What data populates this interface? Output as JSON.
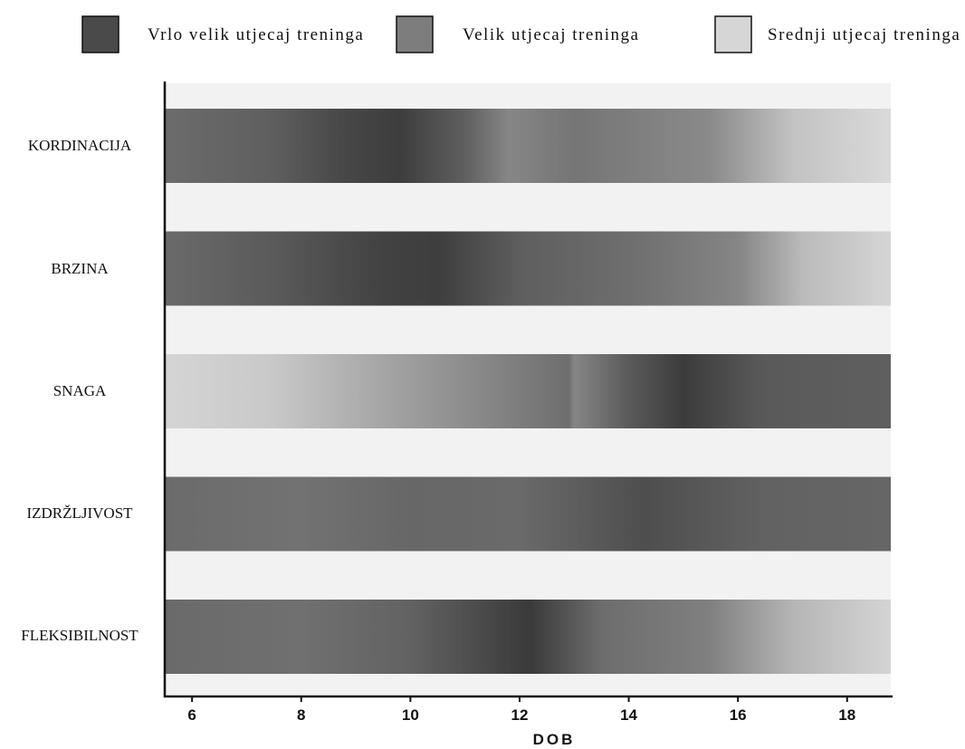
{
  "chart_data": {
    "type": "heatmap",
    "title": "",
    "xlabel": "DOB",
    "ylabel": "",
    "xlim": [
      5.5,
      18.8
    ],
    "x_ticks": [
      "6",
      "8",
      "10",
      "12",
      "14",
      "16",
      "18"
    ],
    "legend": {
      "placement": "top",
      "entries": [
        {
          "label": "Vrlo velik utjecaj treninga",
          "color": "#4a4a4a"
        },
        {
          "label": "Velik utjecaj treninga",
          "color": "#7d7d7d"
        },
        {
          "label": "Srednji utjecaj treninga",
          "color": "#d6d6d6"
        }
      ]
    },
    "band_background": "#f2f2f2",
    "rows": [
      {
        "label": "KORDINACIJA",
        "stops": [
          {
            "age": 5.5,
            "color": "#6c6c6c"
          },
          {
            "age": 7.5,
            "color": "#5e5e5e"
          },
          {
            "age": 8.8,
            "color": "#474747"
          },
          {
            "age": 9.8,
            "color": "#3d3d3d"
          },
          {
            "age": 11.0,
            "color": "#5f5f5f"
          },
          {
            "age": 11.8,
            "color": "#868686"
          },
          {
            "age": 13.0,
            "color": "#757575"
          },
          {
            "age": 15.5,
            "color": "#8a8a8a"
          },
          {
            "age": 17.0,
            "color": "#c2c2c2"
          },
          {
            "age": 18.8,
            "color": "#dadada"
          }
        ]
      },
      {
        "label": "BRZINA",
        "stops": [
          {
            "age": 5.5,
            "color": "#6a6a6a"
          },
          {
            "age": 7.5,
            "color": "#5a5a5a"
          },
          {
            "age": 9.5,
            "color": "#424242"
          },
          {
            "age": 10.5,
            "color": "#3e3e3e"
          },
          {
            "age": 12.0,
            "color": "#5e5e5e"
          },
          {
            "age": 14.0,
            "color": "#6e6e6e"
          },
          {
            "age": 16.0,
            "color": "#858585"
          },
          {
            "age": 17.2,
            "color": "#bbbbbb"
          },
          {
            "age": 18.8,
            "color": "#d5d5d5"
          }
        ]
      },
      {
        "label": "SNAGA",
        "stops": [
          {
            "age": 5.5,
            "color": "#d5d5d5"
          },
          {
            "age": 7.5,
            "color": "#c8c8c8"
          },
          {
            "age": 9.5,
            "color": "#a5a5a5"
          },
          {
            "age": 11.5,
            "color": "#858585"
          },
          {
            "age": 12.9,
            "color": "#6e6e6e"
          },
          {
            "age": 13.0,
            "color": "#868686"
          },
          {
            "age": 14.0,
            "color": "#5a5a5a"
          },
          {
            "age": 15.0,
            "color": "#3c3c3c"
          },
          {
            "age": 16.5,
            "color": "#5a5a5a"
          },
          {
            "age": 18.8,
            "color": "#5f5f5f"
          }
        ]
      },
      {
        "label": "IZDRŽLJIVOST",
        "stops": [
          {
            "age": 5.5,
            "color": "#6b6b6b"
          },
          {
            "age": 8.0,
            "color": "#727272"
          },
          {
            "age": 10.0,
            "color": "#676767"
          },
          {
            "age": 12.0,
            "color": "#6a6a6a"
          },
          {
            "age": 14.3,
            "color": "#4e4e4e"
          },
          {
            "age": 16.5,
            "color": "#626262"
          },
          {
            "age": 18.8,
            "color": "#666666"
          }
        ]
      },
      {
        "label": "FLEKSIBILNOST",
        "stops": [
          {
            "age": 5.5,
            "color": "#6a6a6a"
          },
          {
            "age": 8.0,
            "color": "#707070"
          },
          {
            "age": 10.0,
            "color": "#626262"
          },
          {
            "age": 12.2,
            "color": "#3a3a3a"
          },
          {
            "age": 13.5,
            "color": "#6d6d6d"
          },
          {
            "age": 15.5,
            "color": "#808080"
          },
          {
            "age": 17.0,
            "color": "#b5b5b5"
          },
          {
            "age": 18.8,
            "color": "#d4d4d4"
          }
        ]
      }
    ]
  }
}
